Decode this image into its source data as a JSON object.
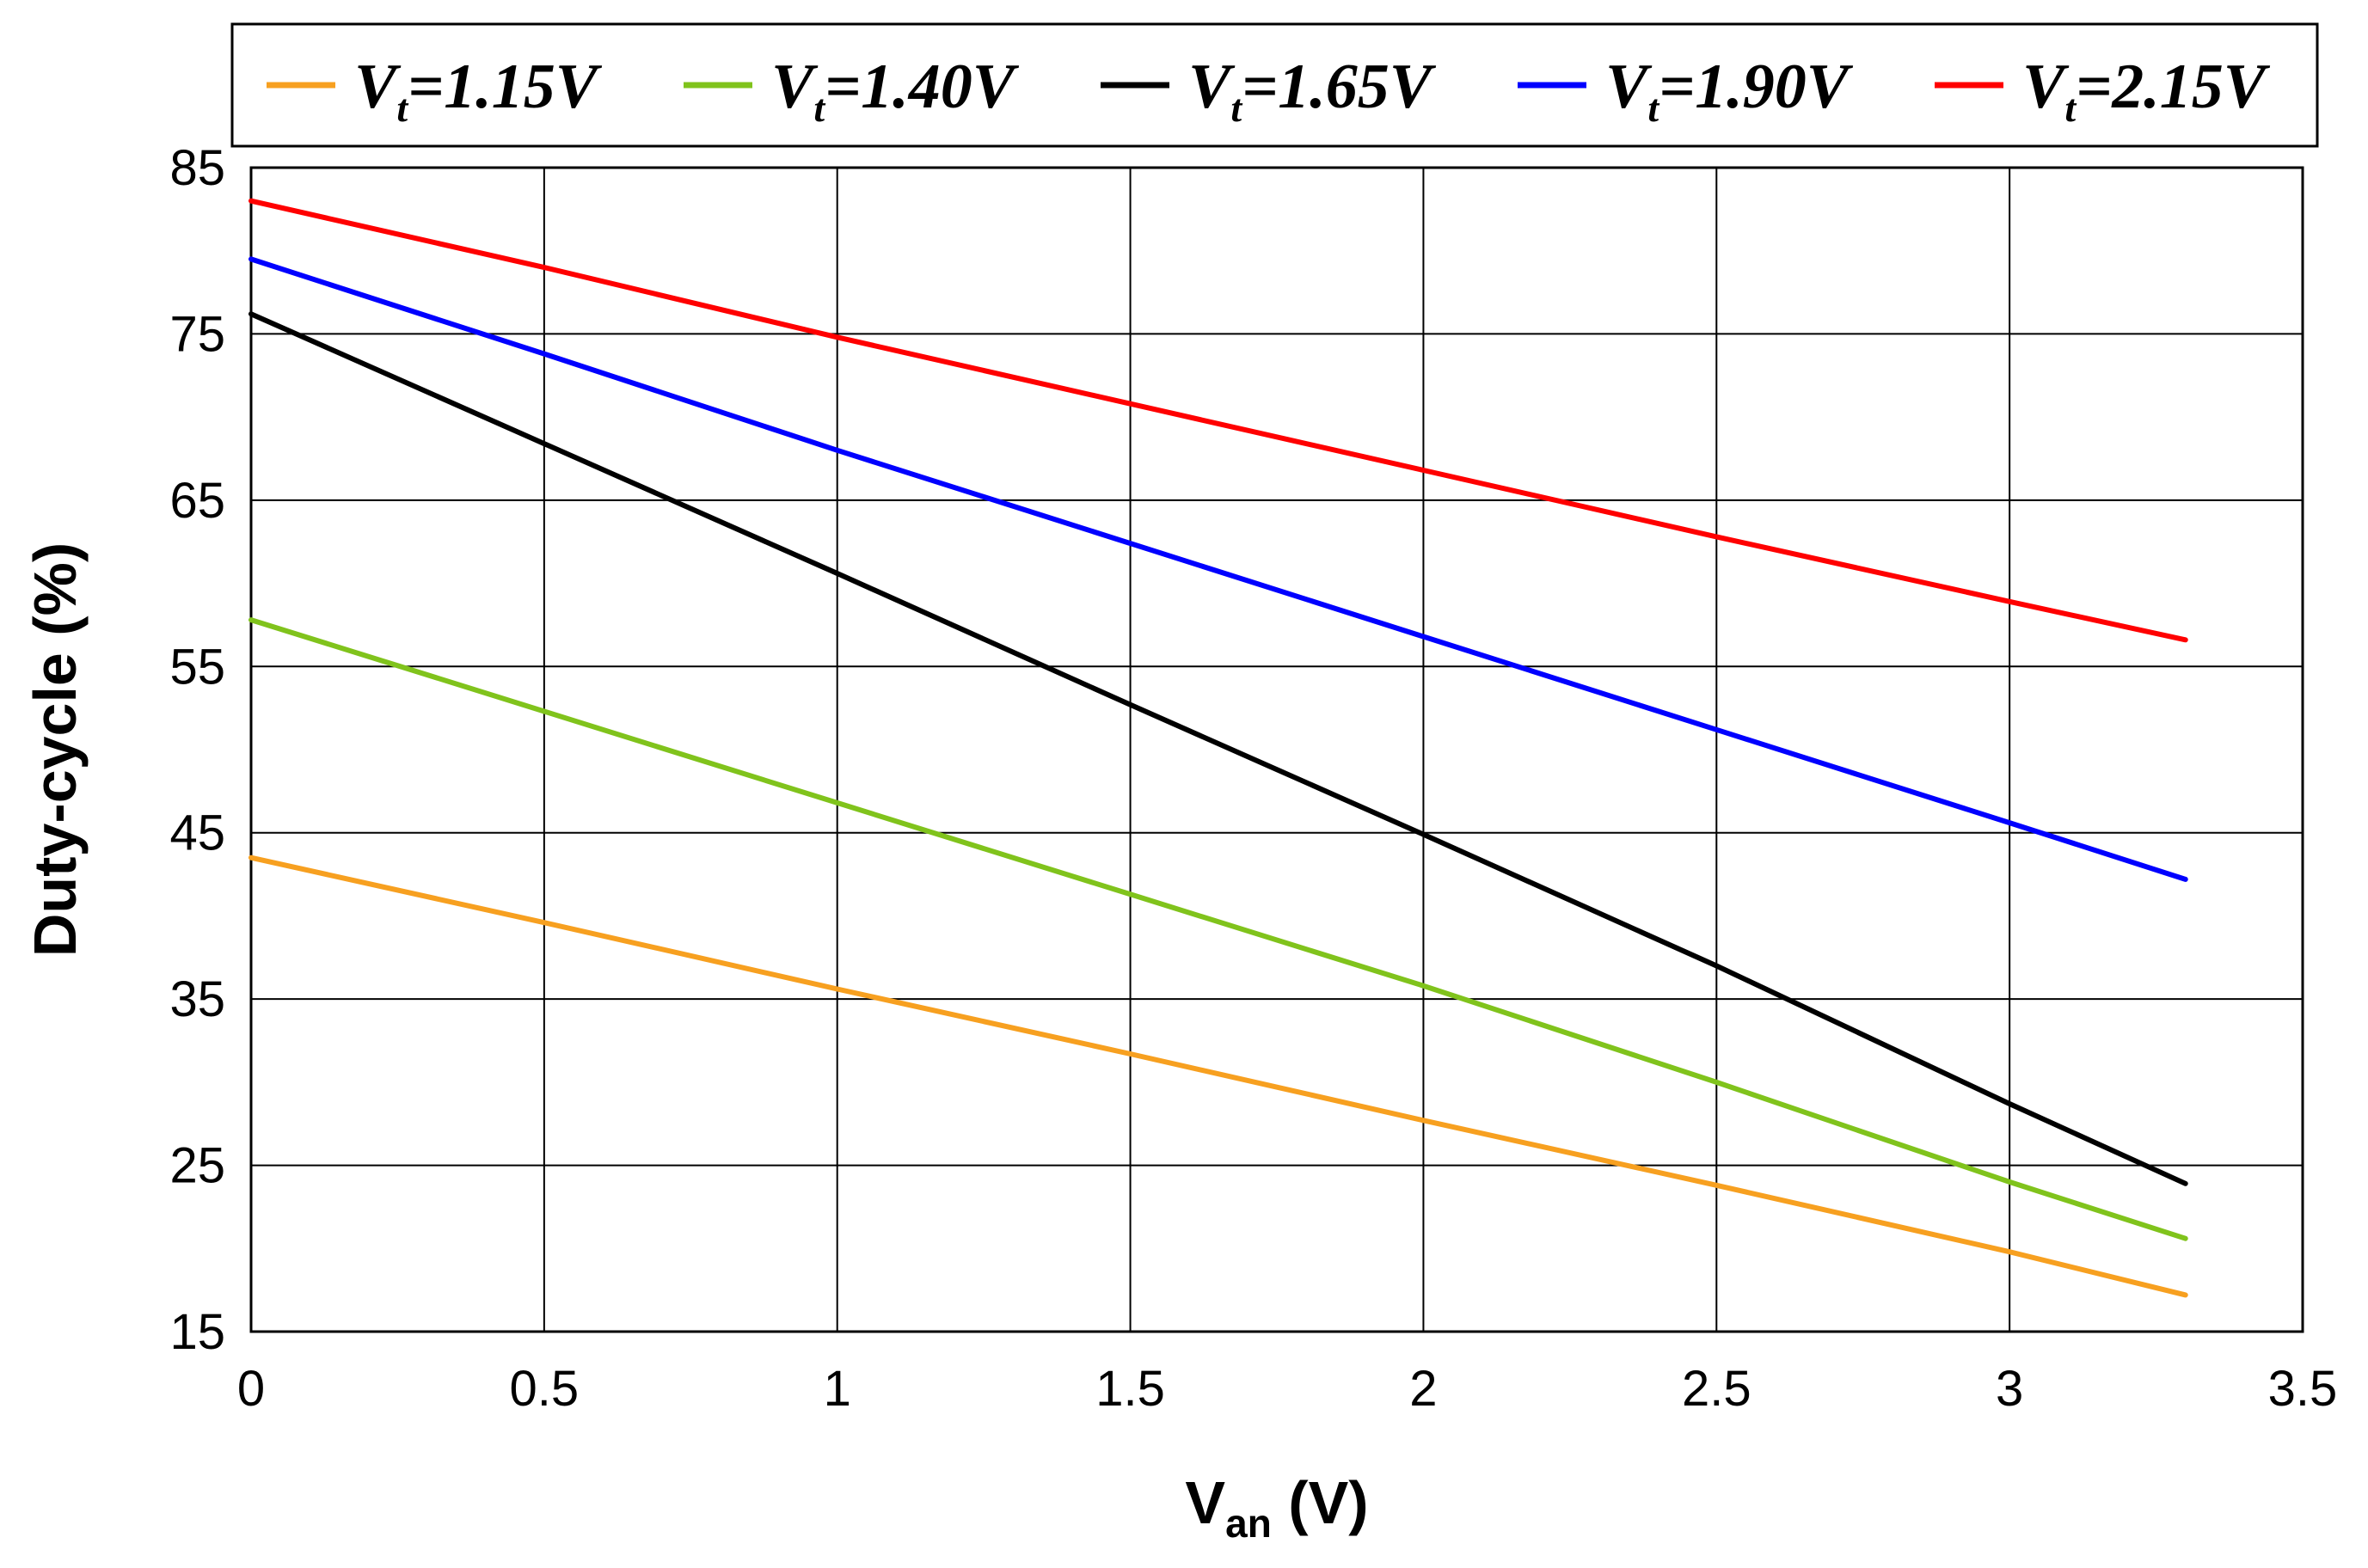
{
  "chart_data": {
    "type": "line",
    "title": "",
    "xlabel": {
      "main": "V",
      "sub": "an",
      "unit": " (V)"
    },
    "ylabel": "Duty-cycle (%)",
    "xlim": [
      0,
      3.5
    ],
    "ylim": [
      15,
      85
    ],
    "xticks": [
      0,
      0.5,
      1,
      1.5,
      2,
      2.5,
      3,
      3.5
    ],
    "xtick_labels": [
      "0",
      "0.5",
      "1",
      "1.5",
      "2",
      "2.5",
      "3",
      "3.5"
    ],
    "yticks": [
      15,
      25,
      35,
      45,
      55,
      65,
      75,
      85
    ],
    "ytick_labels": [
      "15",
      "25",
      "35",
      "45",
      "55",
      "65",
      "75",
      "85"
    ],
    "grid": true,
    "legend_position": "top",
    "x": [
      0,
      0.5,
      1,
      1.5,
      2,
      2.5,
      3,
      3.3
    ],
    "series": [
      {
        "name": "Vt=1.15V",
        "label_main": "V",
        "label_sub": "t",
        "label_rest": "=1.15V",
        "color": "#f7a020",
        "values": [
          43.5,
          39.6,
          35.6,
          31.7,
          27.7,
          23.8,
          19.8,
          17.2
        ]
      },
      {
        "name": "Vt=1.40V",
        "label_main": "V",
        "label_sub": "t",
        "label_rest": "=1.40V",
        "color": "#80c31c",
        "values": [
          57.8,
          52.3,
          46.8,
          41.3,
          35.8,
          30.0,
          24.0,
          20.6
        ]
      },
      {
        "name": "Vt=1.65V",
        "label_main": "V",
        "label_sub": "t",
        "label_rest": "=1.65V",
        "color": "#000000",
        "values": [
          76.2,
          68.4,
          60.6,
          52.7,
          44.9,
          37.0,
          28.7,
          23.9
        ]
      },
      {
        "name": "Vt=1.90V",
        "label_main": "V",
        "label_sub": "t",
        "label_rest": "=1.90V",
        "color": "#0000ff",
        "values": [
          79.5,
          73.8,
          68.0,
          62.4,
          56.8,
          51.2,
          45.6,
          42.2
        ]
      },
      {
        "name": "Vt=2.15V",
        "label_main": "V",
        "label_sub": "t",
        "label_rest": "=2.15V",
        "color": "#ff0000",
        "values": [
          83.0,
          79.0,
          74.8,
          70.8,
          66.8,
          62.8,
          58.9,
          56.6
        ]
      }
    ]
  }
}
